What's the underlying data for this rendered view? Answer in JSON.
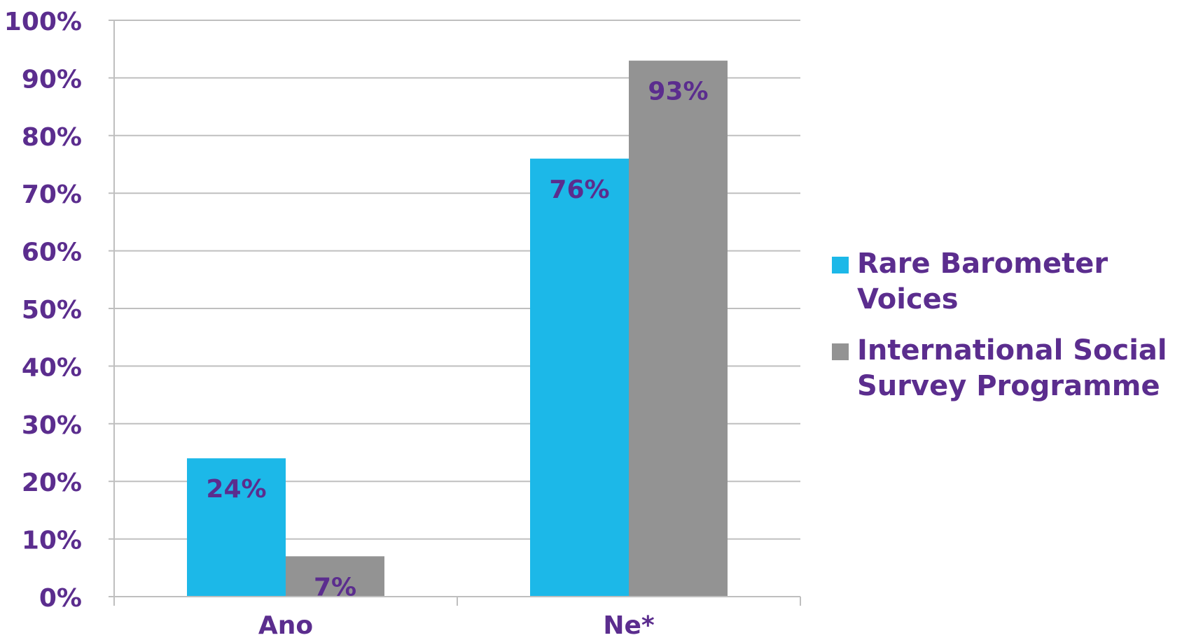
{
  "chart_data": {
    "type": "bar",
    "categories": [
      "Ano",
      "Ne*"
    ],
    "series": [
      {
        "name": "Rare Barometer Voices",
        "values": [
          24,
          76
        ],
        "labels": [
          "24%",
          "76%"
        ],
        "color": "#1cb8e8"
      },
      {
        "name": "International Social Survey Programme",
        "values": [
          7,
          93
        ],
        "labels": [
          "7%",
          "93%"
        ],
        "color": "#939393"
      }
    ],
    "yticks": [
      "0%",
      "10%",
      "20%",
      "30%",
      "40%",
      "50%",
      "60%",
      "70%",
      "80%",
      "90%",
      "100%"
    ],
    "ylim": [
      0,
      100
    ],
    "grid": true,
    "legend": "right",
    "text_color": "#5b2d8e",
    "grid_color": "#bfbfbf"
  }
}
